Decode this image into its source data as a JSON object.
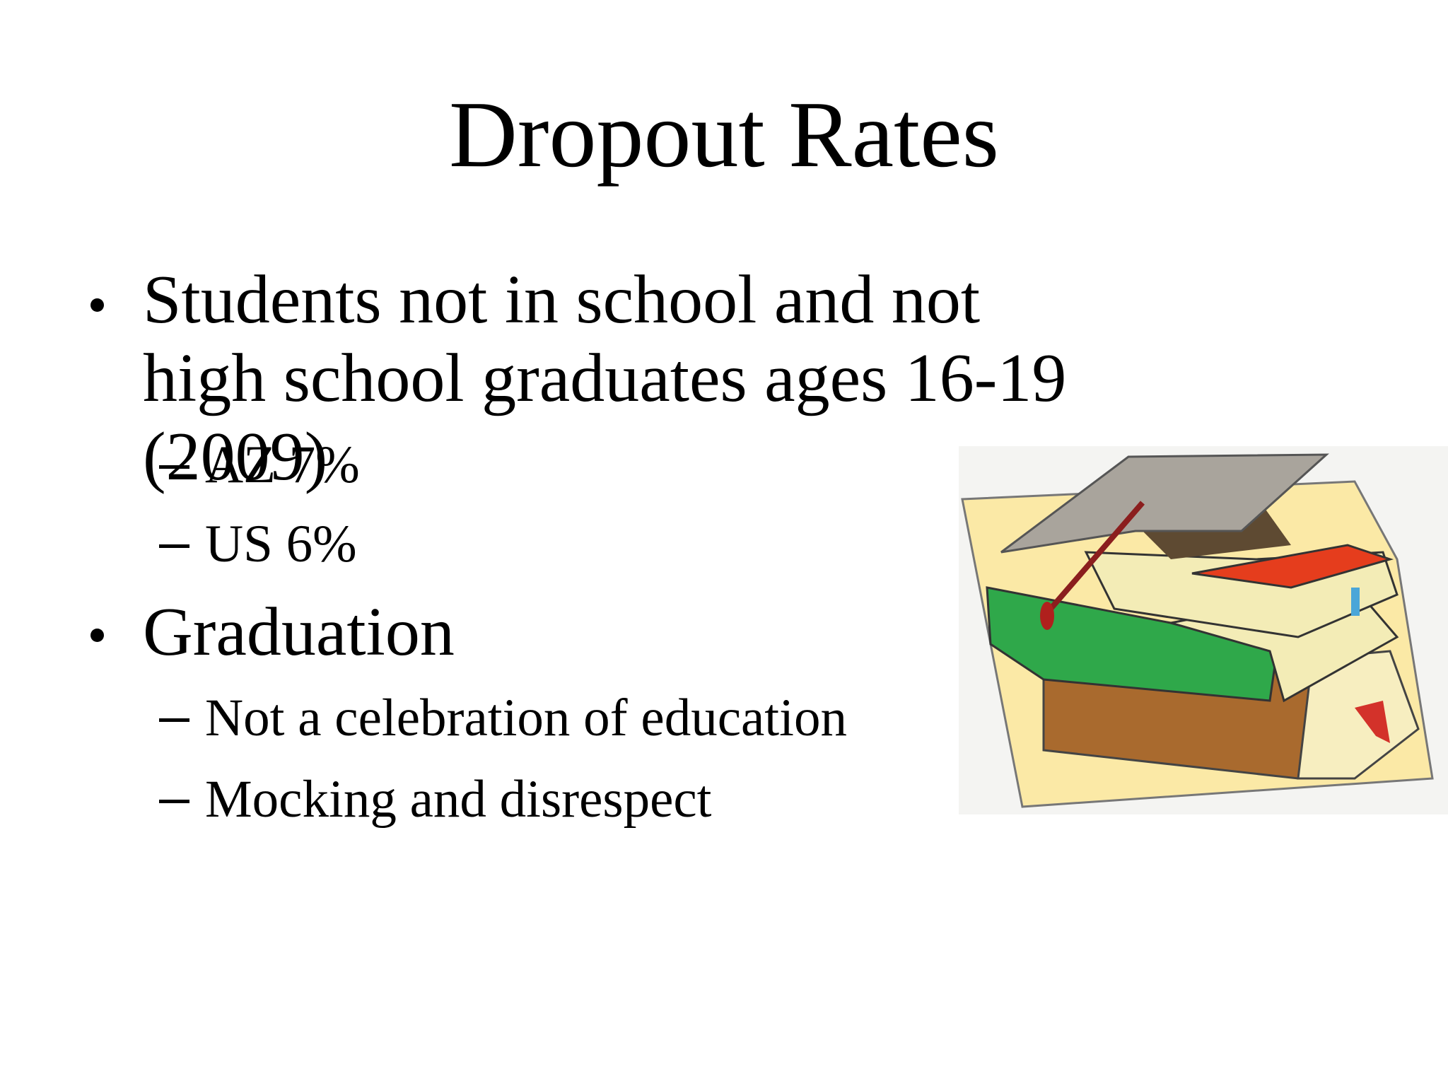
{
  "title": "Dropout Rates",
  "bullets": [
    {
      "text": "Students not in school and not high school graduates ages 16-19 (2009)",
      "subs": [
        "AZ 7%",
        "US 6%"
      ]
    },
    {
      "text": "Graduation",
      "subs": [
        "Not a celebration of education",
        "Mocking and disrespect"
      ]
    }
  ]
}
